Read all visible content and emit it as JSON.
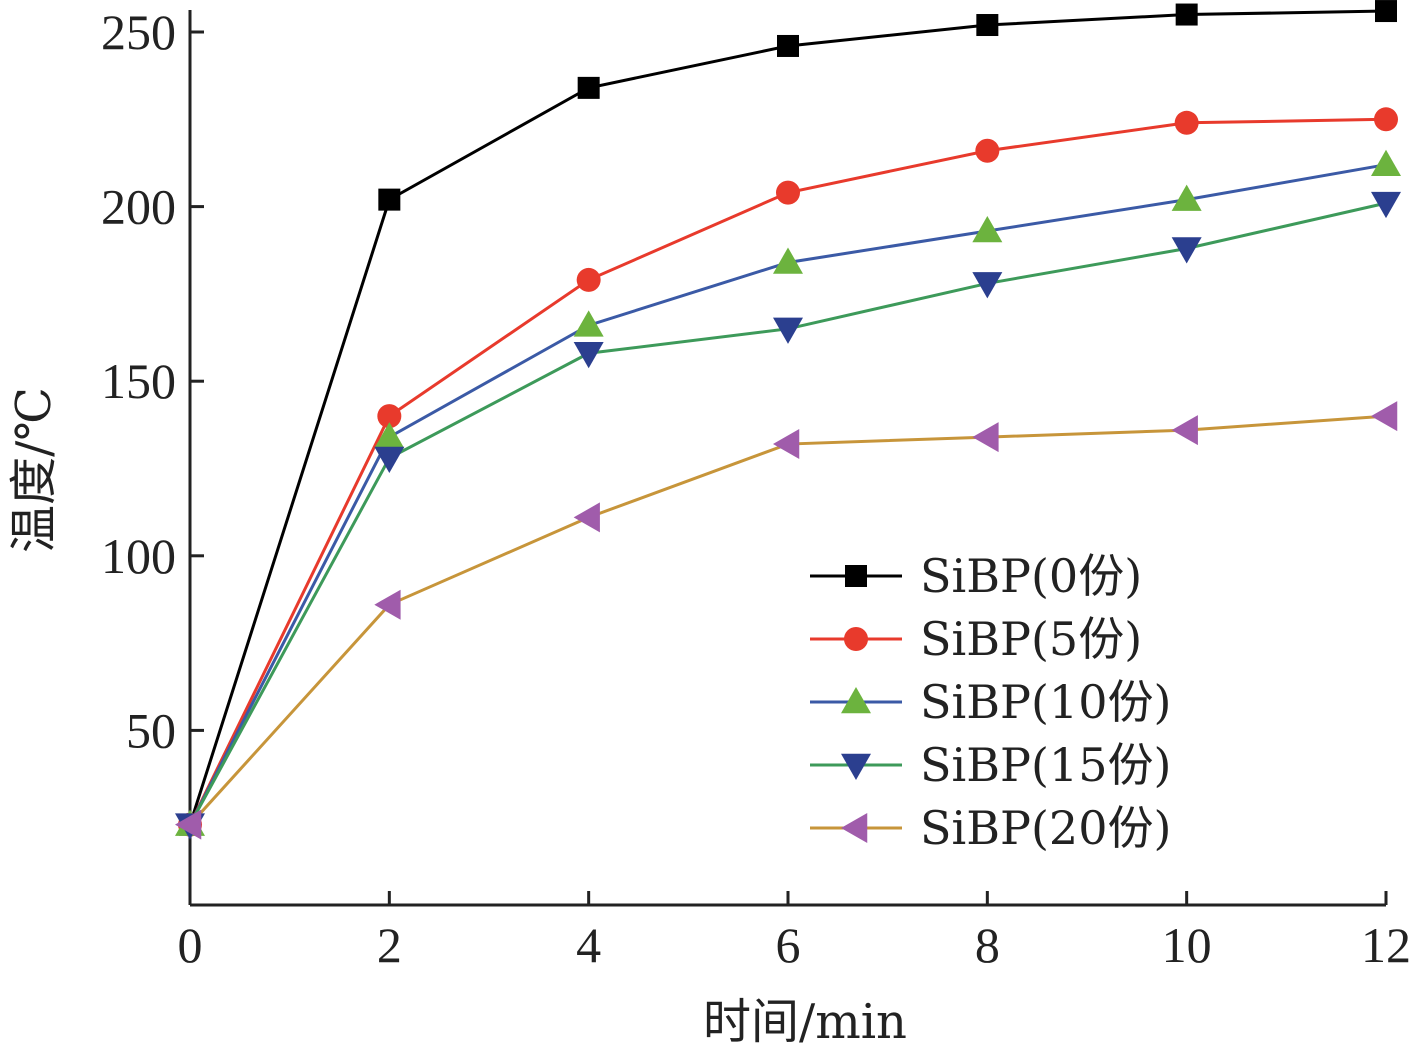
{
  "chart_data": {
    "type": "line",
    "xlabel": "时间/min",
    "ylabel": "温度/℃",
    "x": [
      0,
      2,
      4,
      6,
      8,
      10,
      12
    ],
    "xlim": [
      0,
      12
    ],
    "ylim": [
      0,
      250
    ],
    "xticks": [
      "0",
      "2",
      "4",
      "6",
      "8",
      "10",
      "12"
    ],
    "yticks": [
      "50",
      "100",
      "150",
      "200",
      "250"
    ],
    "grid": false,
    "legend_position": "lower-right",
    "series": [
      {
        "name": "SiBP(0份)",
        "color": "#000000",
        "marker": "square",
        "values": [
          23,
          202,
          234,
          246,
          252,
          255,
          256
        ]
      },
      {
        "name": "SiBP(5份)",
        "color": "#e83a2c",
        "marker": "circle",
        "values": [
          23,
          140,
          179,
          204,
          216,
          224,
          225
        ]
      },
      {
        "name": "SiBP(10份)",
        "color": "#3b5aa6",
        "marker": "triangle-up",
        "marker_color": "#6cb33e",
        "values": [
          23,
          134,
          166,
          184,
          193,
          202,
          212
        ]
      },
      {
        "name": "SiBP(15份)",
        "color": "#3d9a5a",
        "marker": "triangle-down",
        "marker_color": "#2b3f8f",
        "values": [
          23,
          128,
          158,
          165,
          178,
          188,
          201
        ]
      },
      {
        "name": "SiBP(20份)",
        "color": "#c7953a",
        "marker": "triangle-left",
        "marker_color": "#a05cab",
        "values": [
          23,
          86,
          111,
          132,
          134,
          136,
          140
        ]
      }
    ]
  }
}
